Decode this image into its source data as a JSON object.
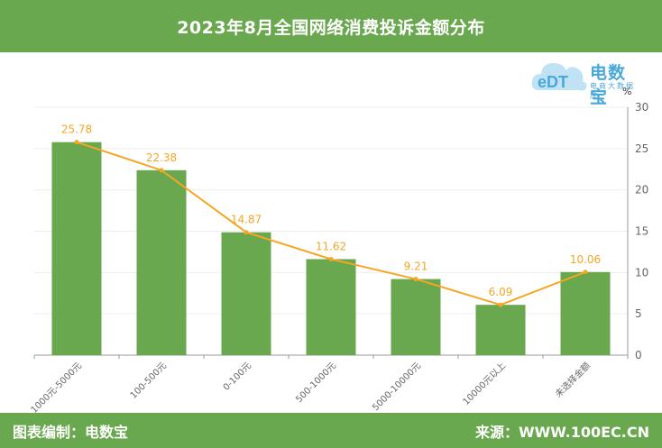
{
  "header": {
    "title": "2023年8月全国网络消费投诉金额分布"
  },
  "logo": {
    "brand": "电数宝",
    "subtitle": "电商大数据库",
    "mark": "eDT"
  },
  "footer": {
    "left": "图表编制：电数宝",
    "right": "来源：WWW.100EC.CN"
  },
  "colors": {
    "bar": "#6aa84f",
    "line": "#f5a623",
    "header": "#6aa84f",
    "axis": "#666666",
    "logo": "#4aa8d8"
  },
  "chart_data": {
    "type": "bar",
    "title": "2023年8月全国网络消费投诉金额分布",
    "categories": [
      "1000元-5000元",
      "100-500元",
      "0-100元",
      "500-1000元",
      "5000-10000元",
      "10000元以上",
      "未选择金额"
    ],
    "series": [
      {
        "type": "bar",
        "values": [
          25.78,
          22.38,
          14.87,
          11.62,
          9.21,
          6.09,
          10.06
        ]
      },
      {
        "type": "line",
        "values": [
          25.78,
          22.38,
          14.87,
          11.62,
          9.21,
          6.09,
          10.06
        ]
      }
    ],
    "data_labels": [
      "25.78",
      "22.38",
      "14.87",
      "11.62",
      "9.21",
      "6.09",
      "10.06"
    ],
    "y_unit_label": "%",
    "ylim": [
      0,
      30
    ],
    "yticks": [
      0,
      5,
      10,
      15,
      20,
      25,
      30
    ],
    "y_axis_position": "right",
    "grid": true
  }
}
